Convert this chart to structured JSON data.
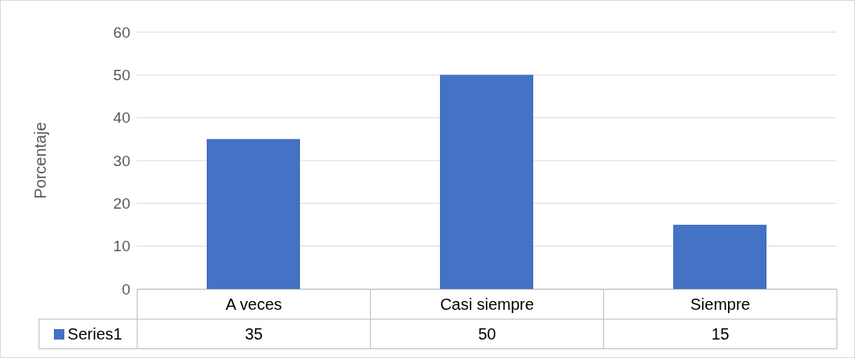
{
  "chart_data": {
    "type": "bar",
    "ylabel": "Porcentaje",
    "categories": [
      "A veces",
      "Casi siempre",
      "Siempre"
    ],
    "series": [
      {
        "name": "Series1",
        "color": "#4472c4",
        "values": [
          35,
          50,
          15
        ]
      }
    ],
    "ylim": [
      0,
      60
    ],
    "yticks": [
      0,
      10,
      20,
      30,
      40,
      50,
      60
    ],
    "grid": "y",
    "legend": "bottom",
    "data_labels": true
  }
}
